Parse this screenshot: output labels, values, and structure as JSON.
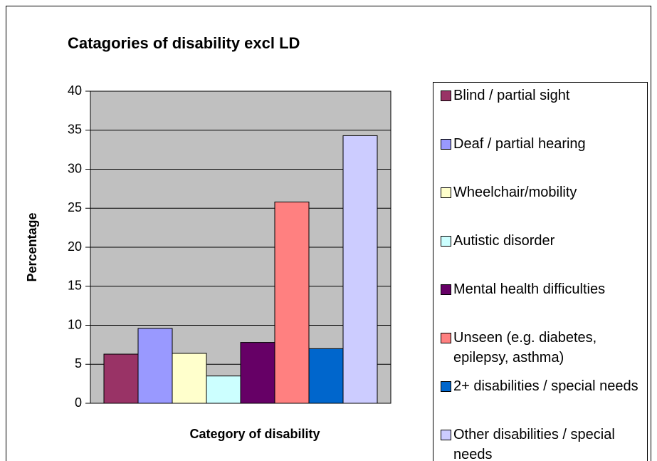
{
  "chart_data": {
    "type": "bar",
    "title": "Catagories of disability excl LD",
    "x_label": "Category of disability",
    "y_label": "Percentage",
    "categories": [
      null
    ],
    "series": [
      {
        "name": "Blind / partial sight",
        "color": "#993366",
        "values": [
          6.3
        ]
      },
      {
        "name": "Deaf / partial hearing",
        "color": "#9999ff",
        "values": [
          9.6
        ]
      },
      {
        "name": "Wheelchair/mobility",
        "color": "#ffffcc",
        "values": [
          6.4
        ]
      },
      {
        "name": "Autistic disorder",
        "color": "#ccffff",
        "values": [
          3.5
        ]
      },
      {
        "name": "Mental health difficulties",
        "color": "#660066",
        "values": [
          7.8
        ]
      },
      {
        "name": "Unseen (e.g. diabetes, epilepsy, asthma)",
        "color": "#ff8080",
        "values": [
          25.8
        ]
      },
      {
        "name": "2+ disabilities / special needs",
        "color": "#0066cc",
        "values": [
          7.0
        ]
      },
      {
        "name": "Other disabilities / special needs",
        "color": "#ccccff",
        "values": [
          34.3
        ]
      }
    ],
    "ylim": [
      0,
      40
    ],
    "yticks": [
      0,
      5,
      10,
      15,
      20,
      25,
      30,
      35,
      40
    ],
    "grid": true,
    "plot_background": "#c0c0c0",
    "legend": "right"
  }
}
